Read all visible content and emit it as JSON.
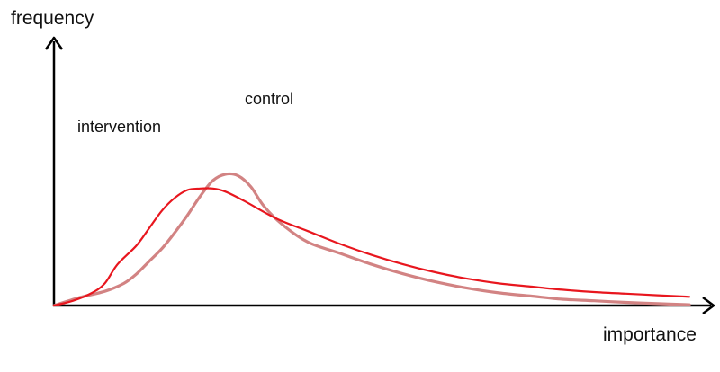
{
  "chart_data": {
    "type": "line",
    "xlabel": "importance",
    "ylabel": "frequency",
    "xlim": [
      0,
      100
    ],
    "ylim": [
      0,
      100
    ],
    "grid": false,
    "legend": "inline labels",
    "series": [
      {
        "name": "intervention",
        "color": "#e8161e",
        "points": [
          [
            0,
            0
          ],
          [
            3,
            3
          ],
          [
            6,
            8
          ],
          [
            8,
            14
          ],
          [
            10,
            26
          ],
          [
            13,
            38
          ],
          [
            15,
            49
          ],
          [
            17,
            60
          ],
          [
            19,
            68
          ],
          [
            21,
            73
          ],
          [
            23,
            74
          ],
          [
            25,
            74
          ],
          [
            27,
            72
          ],
          [
            30,
            66
          ],
          [
            35,
            55
          ],
          [
            40,
            47
          ],
          [
            45,
            39
          ],
          [
            50,
            32
          ],
          [
            55,
            26
          ],
          [
            60,
            21
          ],
          [
            65,
            17
          ],
          [
            70,
            14
          ],
          [
            75,
            12
          ],
          [
            80,
            10
          ],
          [
            85,
            8.5
          ],
          [
            90,
            7.5
          ],
          [
            95,
            6.5
          ],
          [
            100,
            5.5
          ]
        ]
      },
      {
        "name": "control",
        "color": "#d28383",
        "points": [
          [
            0,
            0
          ],
          [
            4,
            5
          ],
          [
            8,
            9
          ],
          [
            11,
            14
          ],
          [
            13,
            20
          ],
          [
            15,
            28
          ],
          [
            17,
            36
          ],
          [
            19,
            46
          ],
          [
            21,
            57
          ],
          [
            23,
            69
          ],
          [
            25,
            79
          ],
          [
            27,
            83
          ],
          [
            29,
            82
          ],
          [
            31,
            75
          ],
          [
            33,
            63
          ],
          [
            36,
            51
          ],
          [
            40,
            40
          ],
          [
            45,
            33
          ],
          [
            50,
            26
          ],
          [
            55,
            20
          ],
          [
            60,
            15
          ],
          [
            65,
            11
          ],
          [
            70,
            8
          ],
          [
            75,
            6
          ],
          [
            80,
            4
          ],
          [
            85,
            3
          ],
          [
            90,
            2
          ],
          [
            95,
            1.2
          ],
          [
            100,
            0.5
          ]
        ]
      }
    ]
  }
}
